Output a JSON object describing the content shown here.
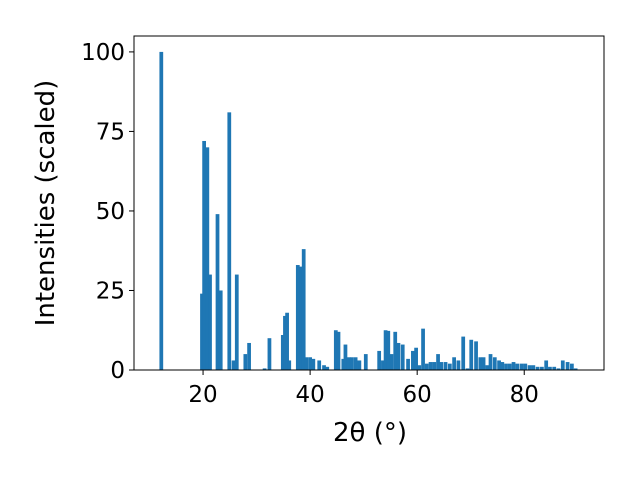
{
  "chart_data": {
    "type": "bar",
    "xlabel": "2θ (°)",
    "ylabel": "Intensities (scaled)",
    "xlim": [
      7.1,
      94.9
    ],
    "ylim": [
      0,
      105
    ],
    "x_ticks": [
      20,
      40,
      60,
      80
    ],
    "y_ticks": [
      0,
      25,
      50,
      75,
      100
    ],
    "x_tick_labels": [
      "20",
      "40",
      "60",
      "80"
    ],
    "y_tick_labels": [
      "0",
      "25",
      "50",
      "75",
      "100"
    ],
    "bar_width": 0.7,
    "bar_color": "#1f77b4",
    "x": [
      12.2,
      19.8,
      20.2,
      20.8,
      21.3,
      22.7,
      23.3,
      24.9,
      25.7,
      26.3,
      27.9,
      28.6,
      31.5,
      32.4,
      34.9,
      35.3,
      35.7,
      36.1,
      37.7,
      38.3,
      38.8,
      39.3,
      40.0,
      40.6,
      41.7,
      42.6,
      43.2,
      44.8,
      45.3,
      46.2,
      46.6,
      47.2,
      47.8,
      48.5,
      49.2,
      50.4,
      52.9,
      53.6,
      54.1,
      54.6,
      55.2,
      55.9,
      56.5,
      57.3,
      58.3,
      59.2,
      59.8,
      60.4,
      61.1,
      61.8,
      62.5,
      63.2,
      63.9,
      64.5,
      65.3,
      66.1,
      66.9,
      67.7,
      68.6,
      69.4,
      70.1,
      71.0,
      71.8,
      72.4,
      73.1,
      73.7,
      74.5,
      75.3,
      75.9,
      76.6,
      77.3,
      78.0,
      78.7,
      79.5,
      80.2,
      81.0,
      81.7,
      82.5,
      83.3,
      84.1,
      84.8,
      85.6,
      86.4,
      87.2,
      88.1,
      88.9,
      89.6
    ],
    "values": [
      100,
      24,
      72,
      70,
      30,
      49,
      25,
      81,
      3,
      30,
      5,
      8.5,
      0.5,
      10,
      11,
      17,
      18,
      3,
      33,
      32.5,
      38,
      4,
      4,
      3.5,
      3,
      1.5,
      1,
      12.5,
      12,
      3.5,
      8,
      4,
      4,
      4,
      3,
      5,
      6,
      3,
      12.5,
      12.3,
      5,
      12,
      8.5,
      8,
      3.5,
      6,
      7,
      1.5,
      13,
      2,
      2.5,
      2.5,
      5,
      2.5,
      2.5,
      2,
      4,
      3,
      10.5,
      0.5,
      9.5,
      9,
      4,
      4,
      1.5,
      5,
      4,
      3,
      2.5,
      2,
      2,
      2.5,
      2,
      2,
      2,
      1.5,
      1.5,
      1,
      1,
      3,
      1,
      1,
      0.5,
      3,
      2.5,
      2,
      0.5
    ]
  }
}
